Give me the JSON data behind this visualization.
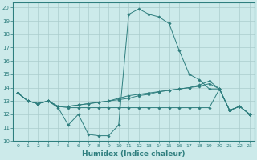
{
  "xlabel": "Humidex (Indice chaleur)",
  "bg_color": "#cceaea",
  "grid_color": "#aacccc",
  "line_color": "#2e7e7e",
  "xlim": [
    -0.5,
    23.5
  ],
  "ylim": [
    10,
    20.4
  ],
  "xticks": [
    0,
    1,
    2,
    3,
    4,
    5,
    6,
    7,
    8,
    9,
    10,
    11,
    12,
    13,
    14,
    15,
    16,
    17,
    18,
    19,
    20,
    21,
    22,
    23
  ],
  "yticks": [
    10,
    11,
    12,
    13,
    14,
    15,
    16,
    17,
    18,
    19,
    20
  ],
  "series": [
    {
      "x": [
        0,
        1,
        2,
        3,
        4,
        5,
        6,
        7,
        8,
        9,
        10,
        11,
        12,
        13,
        14,
        15,
        16,
        17,
        18,
        19,
        20,
        21,
        22,
        23
      ],
      "y": [
        13.6,
        13.0,
        12.8,
        13.0,
        12.5,
        11.2,
        12.0,
        10.5,
        10.4,
        10.4,
        11.2,
        19.5,
        19.9,
        19.5,
        19.3,
        18.8,
        16.8,
        15.0,
        14.6,
        13.9,
        13.9,
        12.3,
        12.6,
        12.0
      ]
    },
    {
      "x": [
        0,
        1,
        2,
        3,
        4,
        5,
        6,
        7,
        8,
        9,
        10,
        11,
        12,
        13,
        14,
        15,
        16,
        17,
        18,
        19,
        20,
        21,
        22,
        23
      ],
      "y": [
        13.6,
        13.0,
        12.8,
        13.0,
        12.6,
        12.6,
        12.7,
        12.8,
        12.9,
        13.0,
        13.1,
        13.2,
        13.4,
        13.5,
        13.7,
        13.8,
        13.9,
        14.0,
        14.1,
        14.3,
        13.9,
        12.3,
        12.6,
        12.0
      ]
    },
    {
      "x": [
        0,
        1,
        2,
        3,
        4,
        5,
        6,
        7,
        8,
        9,
        10,
        11,
        12,
        13,
        14,
        15,
        16,
        17,
        18,
        19,
        20,
        21,
        22,
        23
      ],
      "y": [
        13.6,
        13.0,
        12.8,
        13.0,
        12.6,
        12.5,
        12.5,
        12.5,
        12.5,
        12.5,
        12.5,
        12.5,
        12.5,
        12.5,
        12.5,
        12.5,
        12.5,
        12.5,
        12.5,
        12.5,
        13.9,
        12.3,
        12.6,
        12.0
      ]
    },
    {
      "x": [
        0,
        1,
        2,
        3,
        4,
        5,
        6,
        7,
        8,
        9,
        10,
        11,
        12,
        13,
        14,
        15,
        16,
        17,
        18,
        19,
        20,
        21,
        22,
        23
      ],
      "y": [
        13.6,
        13.0,
        12.8,
        13.0,
        12.6,
        12.6,
        12.7,
        12.8,
        12.9,
        13.0,
        13.2,
        13.4,
        13.5,
        13.6,
        13.7,
        13.8,
        13.9,
        14.0,
        14.2,
        14.5,
        13.9,
        12.3,
        12.6,
        12.0
      ]
    }
  ]
}
